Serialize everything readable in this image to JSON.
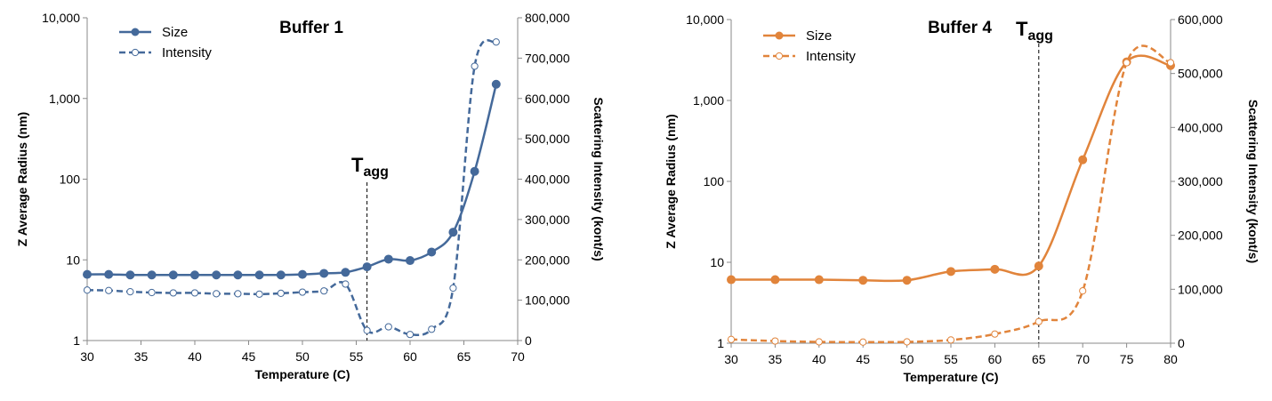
{
  "chart_data": [
    {
      "type": "line",
      "title": "Buffer 1",
      "xlabel": "Temperature (C)",
      "ylabel": "Z Average Radius (nm)",
      "y2label": "Scattering Intensity (kont/s)",
      "xlim": [
        30,
        70
      ],
      "ylim": [
        1,
        10000
      ],
      "yscale": "log",
      "y2lim": [
        0,
        800000
      ],
      "x_ticks": [
        "30",
        "35",
        "40",
        "45",
        "50",
        "55",
        "60",
        "65",
        "70"
      ],
      "x_tick_values": [
        30,
        35,
        40,
        45,
        50,
        55,
        60,
        65,
        70
      ],
      "y_ticks": [
        "1",
        "10",
        "100",
        "1,000",
        "10,000"
      ],
      "y_tick_values": [
        1,
        10,
        100,
        1000,
        10000
      ],
      "y2_ticks": [
        "0",
        "100,000",
        "200,000",
        "300,000",
        "400,000",
        "500,000",
        "600,000",
        "700,000",
        "800,000"
      ],
      "y2_tick_values": [
        0,
        100000,
        200000,
        300000,
        400000,
        500000,
        600000,
        700000,
        800000
      ],
      "annotation": {
        "main": "T",
        "sub": "agg",
        "x": 56
      },
      "color": "#44699a",
      "legend_position": "top-left",
      "grid": false,
      "series": [
        {
          "name": "Size",
          "axis": "left",
          "marker": "filled",
          "dash": false,
          "x": [
            30,
            32,
            34,
            36,
            38,
            40,
            42,
            44,
            46,
            48,
            50,
            52,
            54,
            56,
            58,
            60,
            62,
            64,
            66,
            68
          ],
          "y": [
            6.6,
            6.6,
            6.5,
            6.5,
            6.5,
            6.5,
            6.5,
            6.5,
            6.5,
            6.5,
            6.6,
            6.8,
            7.0,
            8.2,
            10.2,
            9.8,
            12.5,
            22,
            125,
            1500
          ]
        },
        {
          "name": "Intensity",
          "axis": "right",
          "marker": "open",
          "dash": true,
          "x": [
            30,
            32,
            34,
            36,
            38,
            40,
            42,
            44,
            46,
            48,
            50,
            52,
            54,
            56,
            58,
            60,
            62,
            64,
            66,
            68
          ],
          "y": [
            125000,
            124000,
            121000,
            119000,
            118000,
            118000,
            116000,
            116000,
            115000,
            117000,
            120000,
            123000,
            140000,
            25000,
            34000,
            15000,
            28000,
            130000,
            680000,
            740000
          ]
        }
      ]
    },
    {
      "type": "line",
      "title": "Buffer 4",
      "xlabel": "Temperature (C)",
      "ylabel": "Z Average Radius (nm)",
      "y2label": "Scattering Intensity (kont/s)",
      "xlim": [
        30,
        80
      ],
      "ylim": [
        1,
        10000
      ],
      "yscale": "log",
      "y2lim": [
        0,
        600000
      ],
      "x_ticks": [
        "30",
        "35",
        "40",
        "45",
        "50",
        "55",
        "60",
        "65",
        "70",
        "75",
        "80"
      ],
      "x_tick_values": [
        30,
        35,
        40,
        45,
        50,
        55,
        60,
        65,
        70,
        75,
        80
      ],
      "y_ticks": [
        "1",
        "10",
        "100",
        "1,000",
        "10,000"
      ],
      "y_tick_values": [
        1,
        10,
        100,
        1000,
        10000
      ],
      "y2_ticks": [
        "0",
        "100,000",
        "200,000",
        "300,000",
        "400,000",
        "500,000",
        "600,000"
      ],
      "y2_tick_values": [
        0,
        100000,
        200000,
        300000,
        400000,
        500000,
        600000
      ],
      "annotation": {
        "main": "T",
        "sub": "agg",
        "x": 65
      },
      "color": "#e1843b",
      "legend_position": "top-left",
      "grid": false,
      "series": [
        {
          "name": "Size",
          "axis": "left",
          "marker": "filled",
          "dash": false,
          "x": [
            30,
            35,
            40,
            45,
            50,
            55,
            60,
            65,
            70,
            75,
            80
          ],
          "y": [
            6.1,
            6.1,
            6.1,
            6.0,
            6.0,
            7.7,
            8.2,
            9.0,
            185,
            3000,
            2700
          ]
        },
        {
          "name": "Intensity",
          "axis": "right",
          "marker": "open",
          "dash": true,
          "x": [
            30,
            35,
            40,
            45,
            50,
            55,
            60,
            65,
            70,
            75,
            80
          ],
          "y": [
            7000,
            4000,
            2500,
            2000,
            2500,
            6000,
            17000,
            40000,
            97000,
            520000,
            520000
          ]
        }
      ]
    }
  ]
}
